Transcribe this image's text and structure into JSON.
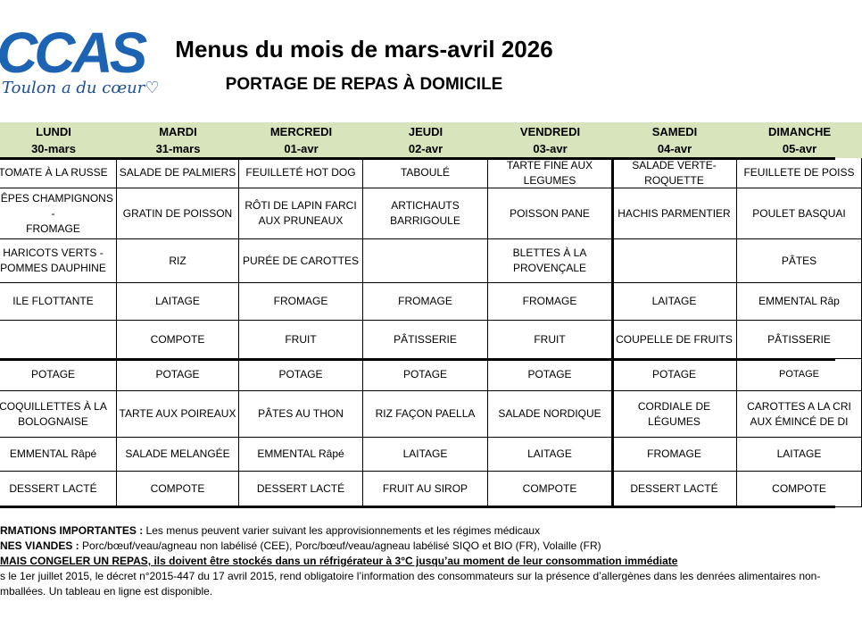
{
  "header": {
    "logo": "CCAS",
    "logo_tagline": "Toulon a du cœur♡",
    "title": "Menus du mois de mars-avril 2026",
    "subtitle": "PORTAGE DE REPAS À DOMICILE"
  },
  "table": {
    "columns": [
      {
        "day": "LUNDI",
        "date": "30-mars"
      },
      {
        "day": "MARDI",
        "date": "31-mars"
      },
      {
        "day": "MERCREDI",
        "date": "01-avr"
      },
      {
        "day": "JEUDI",
        "date": "02-avr"
      },
      {
        "day": "VENDREDI",
        "date": "03-avr"
      },
      {
        "day": "SAMEDI",
        "date": "04-avr"
      },
      {
        "day": "DIMANCHE",
        "date": "05-avr"
      }
    ],
    "rows": [
      [
        "TOMATE À LA RUSSE",
        "SALADE DE PALMIERS",
        "FEUILLETÉ HOT DOG",
        "TABOULÉ",
        "TARTE FINE AUX\nLEGUMES",
        "SALADE VERTE-\nROQUETTE",
        "FEUILLETE DE POISS"
      ],
      [
        "RÊPES CHAMPIGNONS -\nFROMAGE",
        "GRATIN DE POISSON",
        "RÔTI DE LAPIN FARCI\nAUX PRUNEAUX",
        "ARTICHAUTS\nBARRIGOULE",
        "POISSON PANE",
        "HACHIS PARMENTIER",
        "POULET BASQUAI"
      ],
      [
        "HARICOTS VERTS -\nPOMMES DAUPHINE",
        "RIZ",
        "PURÉE DE CAROTTES",
        null,
        "BLETTES À LA\nPROVENÇALE",
        null,
        "PÂTES"
      ],
      [
        "ILE FLOTTANTE",
        "LAITAGE",
        "FROMAGE",
        "FROMAGE",
        "FROMAGE",
        "LAITAGE",
        "EMMENTAL Râp"
      ],
      [
        null,
        "COMPOTE",
        "FRUIT",
        "PÂTISSERIE",
        "FRUIT",
        "COUPELLE DE FRUITS",
        "PÂTISSERIE"
      ],
      [
        "POTAGE",
        "POTAGE",
        "POTAGE",
        "POTAGE",
        "POTAGE",
        "POTAGE",
        "POTAGE"
      ],
      [
        "COQUILLETTES À LA\nBOLOGNAISE",
        "TARTE AUX POIREAUX",
        "PÂTES AU THON",
        "RIZ FAÇON PAELLA",
        "SALADE NORDIQUE",
        "CORDIALE DE LÉGUMES",
        "CAROTTES A LA CRI\nAUX ÉMINCÉ DE DI"
      ],
      [
        "EMMENTAL Râpé",
        "SALADE MELANGÉE",
        "EMMENTAL Râpé",
        "LAITAGE",
        "LAITAGE",
        "FROMAGE",
        "LAITAGE"
      ],
      [
        "DESSERT LACTÉ",
        "COMPOTE",
        "DESSERT LACTÉ",
        "FRUIT AU SIROP",
        "COMPOTE",
        "DESSERT LACTÉ",
        "COMPOTE"
      ]
    ]
  },
  "notes": [
    {
      "bold": "RMATIONS IMPORTANTES :",
      "text": " Les menus peuvent varier suivant les approvisionnements et les régimes médicaux"
    },
    {
      "bold": "NES VIANDES :",
      "text": "    Porc/bœuf/veau/agneau non labélisé (CEE), Porc/bœuf/veau/agneau labélisé SIQO et BIO (FR), Volaille (FR)"
    },
    {
      "bold": "MAIS CONGELER UN REPAS, ils doivent être stockés dans un réfrigérateur à 3°C jusqu’au moment de leur consommation immédiate"
    },
    {
      "text": "s le 1er juillet 2015, le décret n°2015-447 du 17 avril 2015, rend obligatoire l’information des consommateurs sur la présence d’allergènes dans les denrées alimentaires non-"
    },
    {
      "text": "mballées. Un tableau en ligne est disponible."
    }
  ]
}
